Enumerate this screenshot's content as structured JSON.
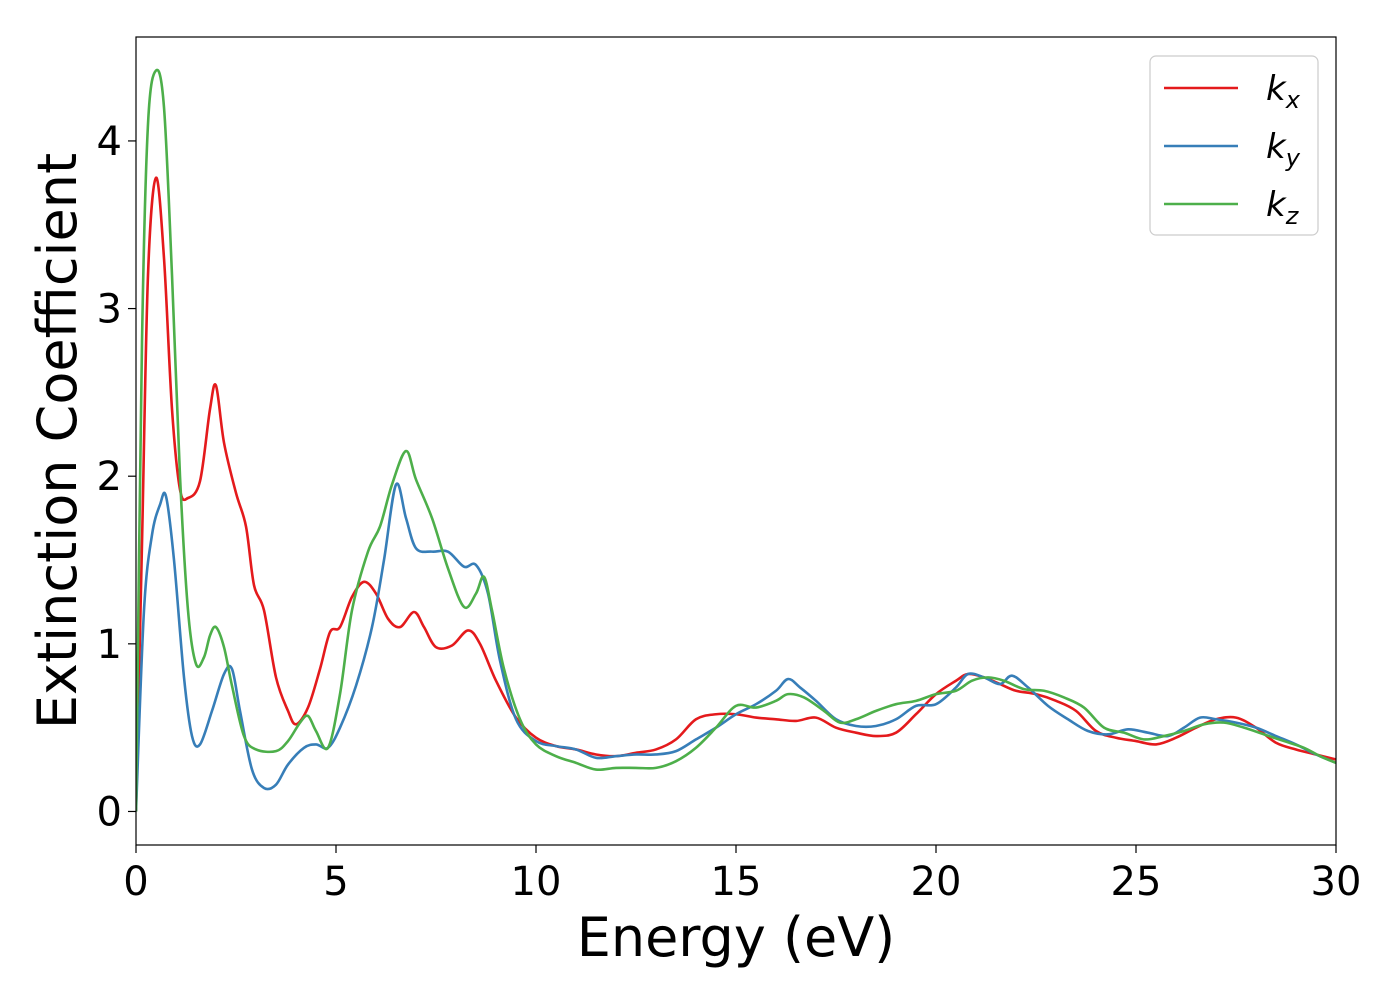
{
  "chart_data": {
    "type": "line",
    "title": "",
    "xlabel": "Energy (eV)",
    "ylabel": "Extinction Coefficient",
    "xlim": [
      0,
      30
    ],
    "ylim": [
      -0.2,
      4.62
    ],
    "xticks": [
      0,
      5,
      10,
      15,
      20,
      25,
      30
    ],
    "yticks": [
      0,
      1,
      2,
      3,
      4
    ],
    "grid": false,
    "legend_position": "top-right",
    "series": [
      {
        "name": "k",
        "subscript": "x",
        "color": "#e41a1c",
        "points": [
          [
            0,
            0.0
          ],
          [
            0.15,
            1.6
          ],
          [
            0.3,
            3.2
          ],
          [
            0.5,
            3.78
          ],
          [
            0.7,
            3.3
          ],
          [
            0.9,
            2.4
          ],
          [
            1.1,
            1.92
          ],
          [
            1.3,
            1.87
          ],
          [
            1.6,
            1.97
          ],
          [
            1.85,
            2.4
          ],
          [
            2.0,
            2.54
          ],
          [
            2.2,
            2.2
          ],
          [
            2.5,
            1.9
          ],
          [
            2.75,
            1.7
          ],
          [
            2.95,
            1.35
          ],
          [
            3.2,
            1.2
          ],
          [
            3.5,
            0.8
          ],
          [
            3.8,
            0.6
          ],
          [
            4.0,
            0.52
          ],
          [
            4.3,
            0.62
          ],
          [
            4.6,
            0.85
          ],
          [
            4.85,
            1.07
          ],
          [
            5.1,
            1.1
          ],
          [
            5.4,
            1.28
          ],
          [
            5.7,
            1.37
          ],
          [
            6.0,
            1.3
          ],
          [
            6.3,
            1.15
          ],
          [
            6.6,
            1.1
          ],
          [
            6.95,
            1.19
          ],
          [
            7.2,
            1.1
          ],
          [
            7.5,
            0.98
          ],
          [
            7.9,
            0.99
          ],
          [
            8.3,
            1.08
          ],
          [
            8.6,
            1.0
          ],
          [
            9.0,
            0.78
          ],
          [
            9.5,
            0.56
          ],
          [
            10.0,
            0.44
          ],
          [
            10.5,
            0.39
          ],
          [
            11.0,
            0.37
          ],
          [
            11.5,
            0.34
          ],
          [
            12.0,
            0.33
          ],
          [
            12.5,
            0.35
          ],
          [
            13.0,
            0.37
          ],
          [
            13.5,
            0.43
          ],
          [
            14.0,
            0.55
          ],
          [
            14.5,
            0.58
          ],
          [
            15.0,
            0.58
          ],
          [
            15.5,
            0.56
          ],
          [
            16.0,
            0.55
          ],
          [
            16.5,
            0.54
          ],
          [
            17.0,
            0.56
          ],
          [
            17.5,
            0.5
          ],
          [
            18.0,
            0.47
          ],
          [
            18.5,
            0.45
          ],
          [
            19.0,
            0.47
          ],
          [
            19.5,
            0.58
          ],
          [
            20.0,
            0.7
          ],
          [
            20.5,
            0.78
          ],
          [
            20.8,
            0.82
          ],
          [
            21.2,
            0.8
          ],
          [
            21.6,
            0.76
          ],
          [
            22.0,
            0.72
          ],
          [
            22.5,
            0.7
          ],
          [
            23.0,
            0.66
          ],
          [
            23.5,
            0.6
          ],
          [
            24.0,
            0.48
          ],
          [
            24.5,
            0.44
          ],
          [
            25.0,
            0.42
          ],
          [
            25.5,
            0.4
          ],
          [
            26.0,
            0.44
          ],
          [
            26.5,
            0.5
          ],
          [
            27.0,
            0.55
          ],
          [
            27.5,
            0.56
          ],
          [
            28.0,
            0.5
          ],
          [
            28.5,
            0.41
          ],
          [
            29.0,
            0.37
          ],
          [
            29.5,
            0.34
          ],
          [
            30.0,
            0.31
          ]
        ]
      },
      {
        "name": "k",
        "subscript": "y",
        "color": "#377eb8",
        "points": [
          [
            0,
            0.0
          ],
          [
            0.2,
            1.2
          ],
          [
            0.4,
            1.65
          ],
          [
            0.6,
            1.83
          ],
          [
            0.75,
            1.88
          ],
          [
            0.95,
            1.5
          ],
          [
            1.2,
            0.8
          ],
          [
            1.4,
            0.45
          ],
          [
            1.6,
            0.4
          ],
          [
            1.9,
            0.6
          ],
          [
            2.2,
            0.82
          ],
          [
            2.4,
            0.85
          ],
          [
            2.6,
            0.6
          ],
          [
            2.9,
            0.25
          ],
          [
            3.2,
            0.14
          ],
          [
            3.5,
            0.16
          ],
          [
            3.8,
            0.28
          ],
          [
            4.2,
            0.38
          ],
          [
            4.5,
            0.4
          ],
          [
            4.8,
            0.38
          ],
          [
            5.1,
            0.5
          ],
          [
            5.5,
            0.75
          ],
          [
            5.9,
            1.1
          ],
          [
            6.2,
            1.5
          ],
          [
            6.5,
            1.95
          ],
          [
            6.75,
            1.75
          ],
          [
            7.0,
            1.57
          ],
          [
            7.4,
            1.55
          ],
          [
            7.8,
            1.55
          ],
          [
            8.2,
            1.46
          ],
          [
            8.5,
            1.47
          ],
          [
            8.8,
            1.3
          ],
          [
            9.1,
            0.9
          ],
          [
            9.5,
            0.55
          ],
          [
            10.0,
            0.42
          ],
          [
            10.5,
            0.39
          ],
          [
            11.0,
            0.37
          ],
          [
            11.5,
            0.32
          ],
          [
            12.0,
            0.33
          ],
          [
            12.5,
            0.34
          ],
          [
            13.0,
            0.34
          ],
          [
            13.5,
            0.36
          ],
          [
            14.0,
            0.43
          ],
          [
            14.5,
            0.5
          ],
          [
            15.0,
            0.58
          ],
          [
            15.5,
            0.64
          ],
          [
            16.0,
            0.72
          ],
          [
            16.3,
            0.79
          ],
          [
            16.6,
            0.74
          ],
          [
            17.0,
            0.66
          ],
          [
            17.5,
            0.55
          ],
          [
            18.0,
            0.51
          ],
          [
            18.5,
            0.51
          ],
          [
            19.0,
            0.55
          ],
          [
            19.5,
            0.63
          ],
          [
            20.0,
            0.64
          ],
          [
            20.5,
            0.74
          ],
          [
            20.8,
            0.82
          ],
          [
            21.2,
            0.8
          ],
          [
            21.6,
            0.76
          ],
          [
            21.9,
            0.81
          ],
          [
            22.3,
            0.74
          ],
          [
            22.8,
            0.63
          ],
          [
            23.3,
            0.55
          ],
          [
            23.8,
            0.48
          ],
          [
            24.3,
            0.46
          ],
          [
            24.8,
            0.49
          ],
          [
            25.3,
            0.47
          ],
          [
            25.8,
            0.45
          ],
          [
            26.2,
            0.5
          ],
          [
            26.6,
            0.56
          ],
          [
            27.0,
            0.55
          ],
          [
            27.5,
            0.53
          ],
          [
            28.0,
            0.5
          ],
          [
            28.5,
            0.45
          ],
          [
            29.0,
            0.4
          ],
          [
            29.5,
            0.34
          ],
          [
            30.0,
            0.29
          ]
        ]
      },
      {
        "name": "k",
        "subscript": "z",
        "color": "#4daf4a",
        "points": [
          [
            0,
            0.0
          ],
          [
            0.15,
            2.8
          ],
          [
            0.3,
            4.1
          ],
          [
            0.5,
            4.42
          ],
          [
            0.7,
            4.2
          ],
          [
            0.9,
            3.2
          ],
          [
            1.1,
            2.0
          ],
          [
            1.3,
            1.2
          ],
          [
            1.5,
            0.88
          ],
          [
            1.7,
            0.92
          ],
          [
            1.85,
            1.05
          ],
          [
            2.0,
            1.1
          ],
          [
            2.2,
            0.98
          ],
          [
            2.4,
            0.75
          ],
          [
            2.7,
            0.45
          ],
          [
            3.0,
            0.37
          ],
          [
            3.5,
            0.36
          ],
          [
            3.8,
            0.42
          ],
          [
            4.1,
            0.53
          ],
          [
            4.3,
            0.57
          ],
          [
            4.5,
            0.48
          ],
          [
            4.8,
            0.38
          ],
          [
            5.1,
            0.7
          ],
          [
            5.4,
            1.2
          ],
          [
            5.8,
            1.55
          ],
          [
            6.1,
            1.7
          ],
          [
            6.4,
            1.95
          ],
          [
            6.75,
            2.15
          ],
          [
            7.0,
            1.98
          ],
          [
            7.4,
            1.75
          ],
          [
            7.8,
            1.45
          ],
          [
            8.2,
            1.22
          ],
          [
            8.5,
            1.3
          ],
          [
            8.7,
            1.4
          ],
          [
            8.9,
            1.2
          ],
          [
            9.2,
            0.85
          ],
          [
            9.6,
            0.55
          ],
          [
            10.0,
            0.4
          ],
          [
            10.5,
            0.33
          ],
          [
            11.0,
            0.29
          ],
          [
            11.5,
            0.25
          ],
          [
            12.0,
            0.26
          ],
          [
            12.5,
            0.26
          ],
          [
            13.0,
            0.26
          ],
          [
            13.5,
            0.3
          ],
          [
            14.0,
            0.38
          ],
          [
            14.5,
            0.5
          ],
          [
            15.0,
            0.63
          ],
          [
            15.5,
            0.62
          ],
          [
            16.0,
            0.66
          ],
          [
            16.3,
            0.7
          ],
          [
            16.7,
            0.68
          ],
          [
            17.2,
            0.6
          ],
          [
            17.6,
            0.53
          ],
          [
            18.0,
            0.55
          ],
          [
            18.5,
            0.6
          ],
          [
            19.0,
            0.64
          ],
          [
            19.5,
            0.66
          ],
          [
            20.0,
            0.7
          ],
          [
            20.5,
            0.72
          ],
          [
            20.9,
            0.78
          ],
          [
            21.3,
            0.8
          ],
          [
            21.7,
            0.78
          ],
          [
            22.2,
            0.73
          ],
          [
            22.7,
            0.72
          ],
          [
            23.2,
            0.68
          ],
          [
            23.7,
            0.62
          ],
          [
            24.2,
            0.5
          ],
          [
            24.7,
            0.47
          ],
          [
            25.2,
            0.43
          ],
          [
            25.7,
            0.45
          ],
          [
            26.2,
            0.48
          ],
          [
            26.7,
            0.52
          ],
          [
            27.2,
            0.53
          ],
          [
            27.7,
            0.5
          ],
          [
            28.2,
            0.46
          ],
          [
            28.7,
            0.42
          ],
          [
            29.2,
            0.38
          ],
          [
            29.6,
            0.33
          ],
          [
            30.0,
            0.29
          ]
        ]
      }
    ]
  }
}
